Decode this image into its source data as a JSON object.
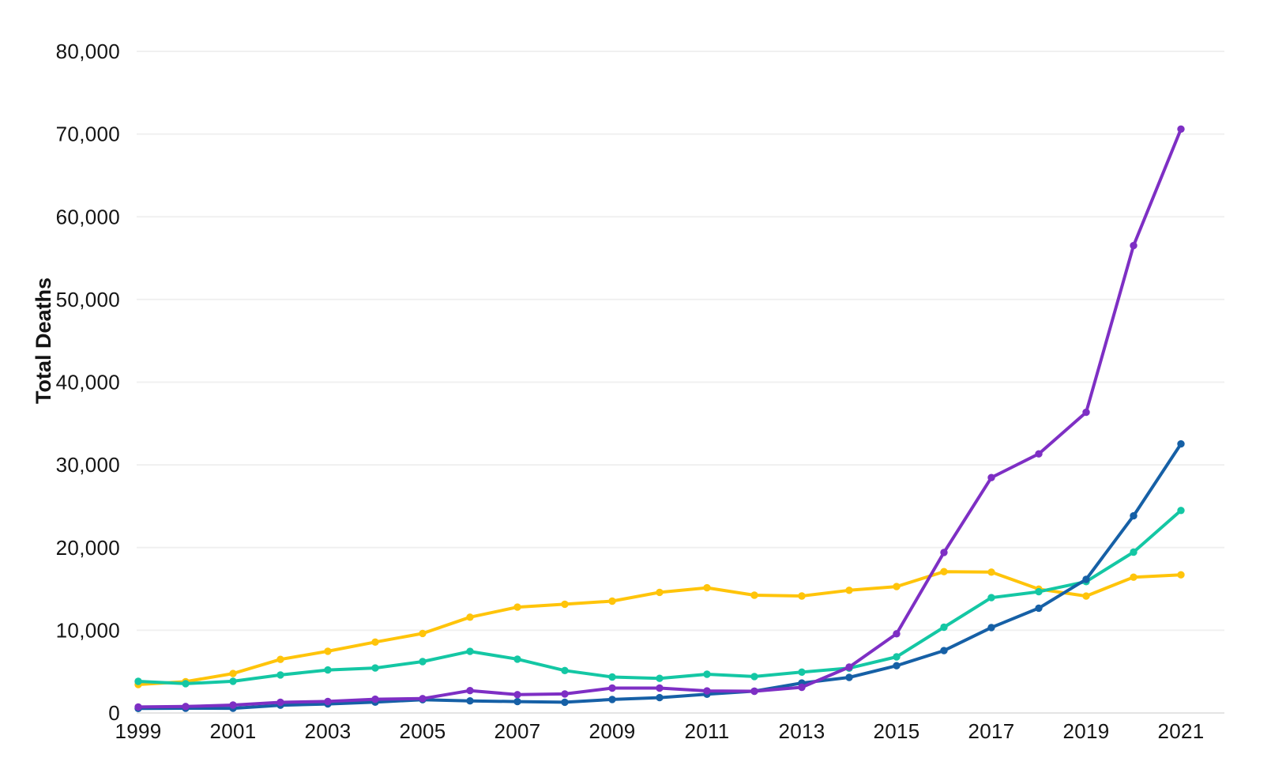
{
  "chart_data": {
    "type": "line",
    "title": "",
    "xlabel": "",
    "ylabel": "Total Deaths",
    "background": "#ffffff",
    "grid": "horizontal",
    "grid_color": "#f0f0f0",
    "baseline_color": "#e4e4e4",
    "text_color": "#141414",
    "legend": "none",
    "marker": "circle",
    "ylim": [
      0,
      80000
    ],
    "x": [
      1999,
      2000,
      2001,
      2002,
      2003,
      2004,
      2005,
      2006,
      2007,
      2008,
      2009,
      2010,
      2011,
      2012,
      2013,
      2014,
      2015,
      2016,
      2017,
      2018,
      2019,
      2020,
      2021
    ],
    "x_tick_labels": [
      "1999",
      "2001",
      "2003",
      "2005",
      "2007",
      "2009",
      "2011",
      "2013",
      "2015",
      "2017",
      "2019",
      "2021"
    ],
    "y_ticks": [
      0,
      10000,
      20000,
      30000,
      40000,
      50000,
      60000,
      70000,
      80000
    ],
    "y_tick_labels": [
      "0",
      "10,000",
      "20,000",
      "30,000",
      "40,000",
      "50,000",
      "60,000",
      "70,000",
      "80,000"
    ],
    "series": [
      {
        "name": "yellow",
        "color": "#FFC40A",
        "values": [
          3442,
          3785,
          4770,
          6483,
          7461,
          8577,
          9612,
          11589,
          12796,
          13149,
          13523,
          14583,
          15140,
          14240,
          14145,
          14838,
          15281,
          17087,
          17029,
          14975,
          14139,
          16416,
          16706
        ]
      },
      {
        "name": "teal",
        "color": "#14C7A4",
        "values": [
          3822,
          3544,
          3833,
          4599,
          5199,
          5443,
          6208,
          7448,
          6512,
          5129,
          4350,
          4183,
          4681,
          4404,
          4944,
          5415,
          6784,
          10375,
          13942,
          14666,
          15883,
          19447,
          24486
        ]
      },
      {
        "name": "blue",
        "color": "#1660A6",
        "values": [
          547,
          578,
          563,
          941,
          1089,
          1305,
          1608,
          1462,
          1378,
          1302,
          1632,
          1854,
          2266,
          2635,
          3627,
          4298,
          5716,
          7542,
          10333,
          12676,
          16167,
          23837,
          32537
        ]
      },
      {
        "name": "purple",
        "color": "#7E2FC4",
        "values": [
          730,
          782,
          957,
          1295,
          1400,
          1664,
          1742,
          2707,
          2213,
          2306,
          3007,
          3007,
          2666,
          2628,
          3105,
          5544,
          9580,
          19413,
          28466,
          31335,
          36359,
          56516,
          70601
        ]
      }
    ]
  }
}
